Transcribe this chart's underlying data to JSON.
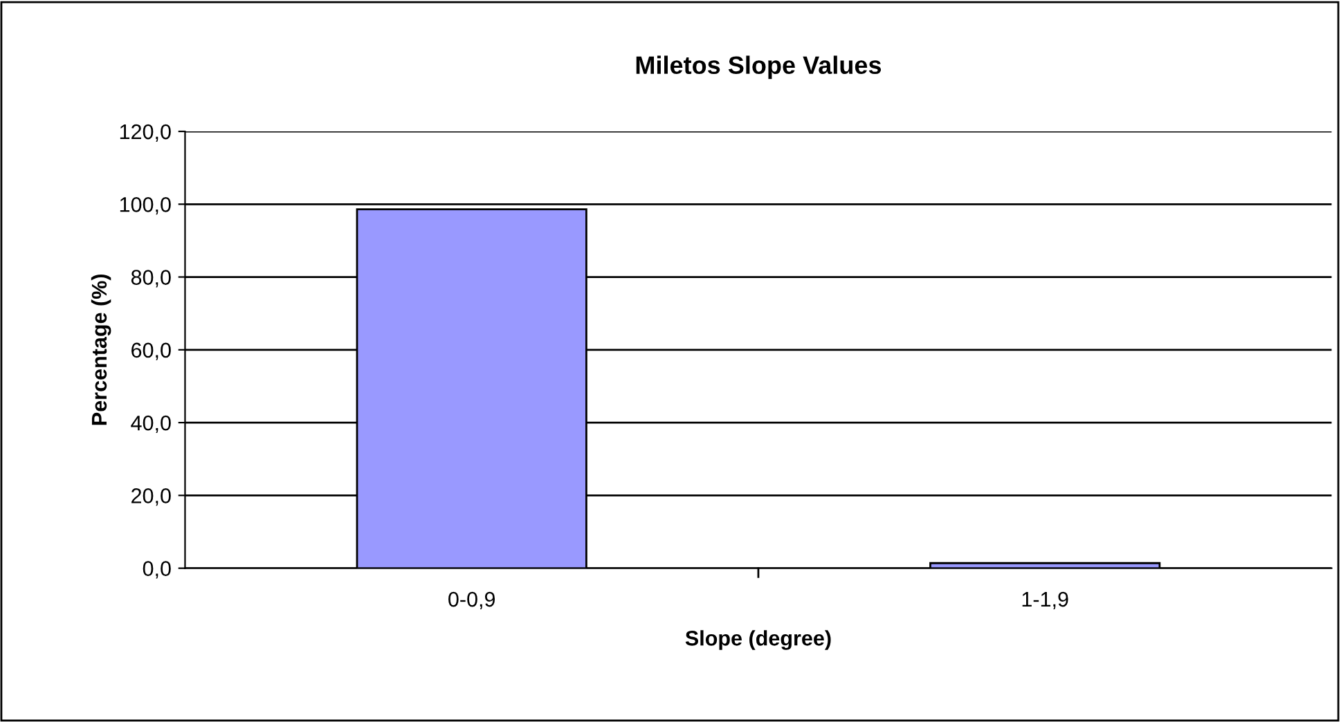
{
  "chart_data": {
    "type": "bar",
    "title": "Miletos Slope Values",
    "xlabel": "Slope (degree)",
    "ylabel": "Percentage (%)",
    "categories": [
      "0-0,9",
      "1-1,9"
    ],
    "values": [
      98.6,
      1.4
    ],
    "color": "#9999ff",
    "ylim": [
      0,
      120
    ],
    "yticks": [
      {
        "value": 0,
        "label": "0,0"
      },
      {
        "value": 20,
        "label": "20,0"
      },
      {
        "value": 40,
        "label": "40,0"
      },
      {
        "value": 60,
        "label": "60,0"
      },
      {
        "value": 80,
        "label": "80,0"
      },
      {
        "value": 100,
        "label": "100,0"
      },
      {
        "value": 120,
        "label": "120,0"
      }
    ],
    "grid": "y",
    "legend": false
  }
}
